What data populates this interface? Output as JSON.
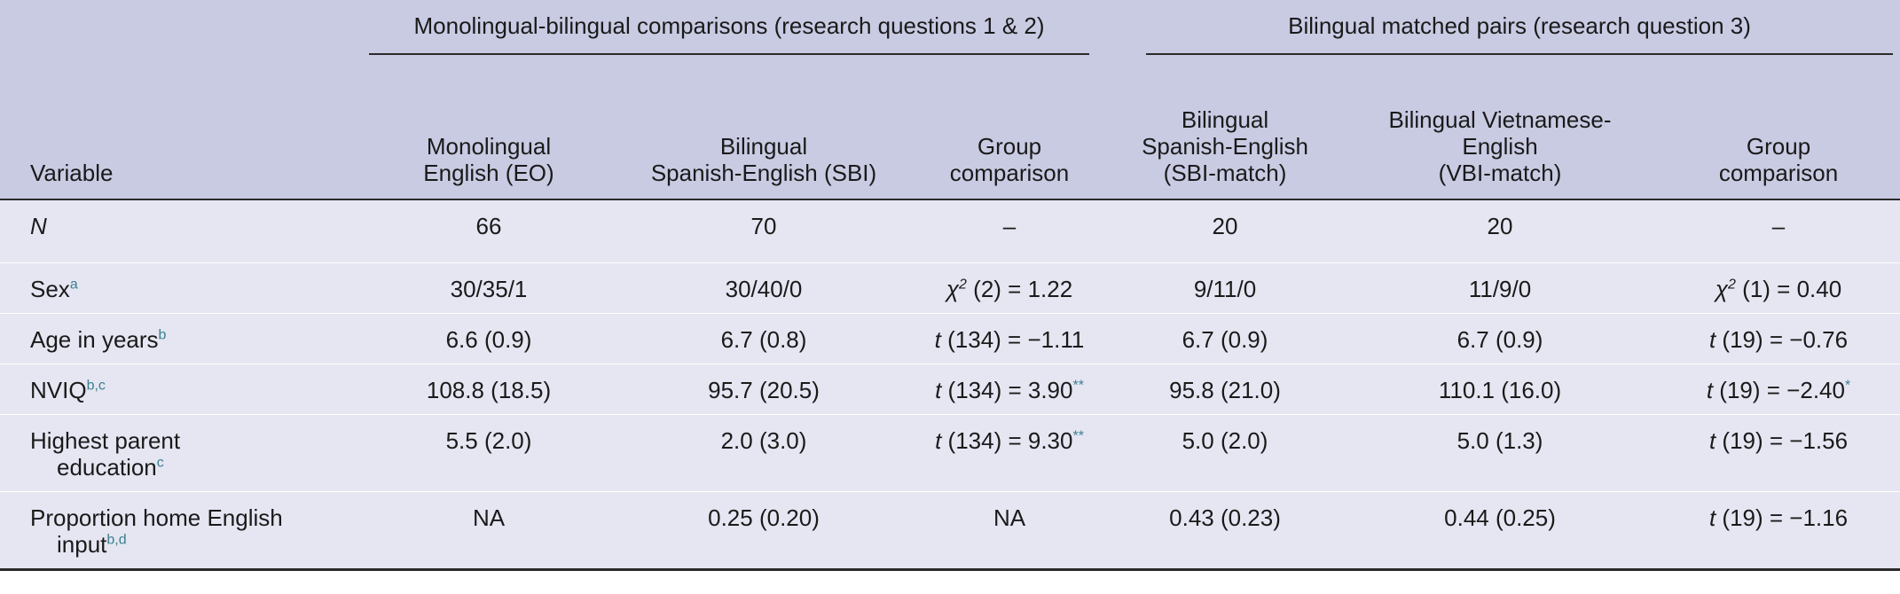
{
  "headers": {
    "group_mono": "Monolingual-bilingual comparisons (research questions 1 & 2)",
    "group_bi": "Bilingual matched pairs (research question 3)",
    "variable": "Variable",
    "col1_l1": "Monolingual",
    "col1_l2": "English (EO)",
    "col2_l1": "Bilingual",
    "col2_l2": "Spanish-English (SBI)",
    "col3_l1": "Group",
    "col3_l2": "comparison",
    "col4_l1": "Bilingual",
    "col4_l2": "Spanish-English",
    "col4_l3": "(SBI-match)",
    "col5_l1": "Bilingual Vietnamese-",
    "col5_l2": "English",
    "col5_l3": "(VBI-match)",
    "col6_l1": "Group",
    "col6_l2": "comparison"
  },
  "rows": {
    "n": {
      "label": "N",
      "eo": "66",
      "sbi": "70",
      "cmp1": "–",
      "sbi_match": "20",
      "vbi_match": "20",
      "cmp2": "–"
    },
    "sex": {
      "label": "Sex",
      "label_sup": "a",
      "eo": "30/35/1",
      "sbi": "30/40/0",
      "cmp1_stat": "χ",
      "cmp1_exp": "2",
      "cmp1_rest": " (2) = 1.22",
      "sbi_match": "9/11/0",
      "vbi_match": "11/9/0",
      "cmp2_stat": "χ",
      "cmp2_exp": "2",
      "cmp2_rest": " (1) = 0.40"
    },
    "age": {
      "label": "Age in years",
      "label_sup": "b",
      "eo": "6.6 (0.9)",
      "sbi": "6.7 (0.8)",
      "cmp1_stat": "t",
      "cmp1_rest": " (134) = −1.11",
      "sbi_match": "6.7 (0.9)",
      "vbi_match": "6.7 (0.9)",
      "cmp2_stat": "t",
      "cmp2_rest": " (19) = −0.76"
    },
    "nviq": {
      "label": "NVIQ",
      "label_sup": "b,c",
      "eo": "108.8 (18.5)",
      "sbi": "95.7 (20.5)",
      "cmp1_stat": "t",
      "cmp1_rest": " (134) = 3.90",
      "cmp1_sig": "**",
      "sbi_match": "95.8 (21.0)",
      "vbi_match": "110.1 (16.0)",
      "cmp2_stat": "t",
      "cmp2_rest": " (19) = −2.40",
      "cmp2_sig": "*"
    },
    "edu": {
      "label_l1": "Highest parent",
      "label_l2": "education",
      "label_sup": "c",
      "eo": "5.5 (2.0)",
      "sbi": "2.0 (3.0)",
      "cmp1_stat": "t",
      "cmp1_rest": " (134) = 9.30",
      "cmp1_sig": "**",
      "sbi_match": "5.0 (2.0)",
      "vbi_match": "5.0 (1.3)",
      "cmp2_stat": "t",
      "cmp2_rest": " (19) = −1.56"
    },
    "prop": {
      "label_l1": "Proportion home English",
      "label_l2": "input",
      "label_sup": "b,d",
      "eo": "NA",
      "sbi": "0.25 (0.20)",
      "cmp1": "NA",
      "sbi_match": "0.43 (0.23)",
      "vbi_match": "0.44 (0.25)",
      "cmp2_stat": "t",
      "cmp2_rest": " (19) = −1.16"
    }
  }
}
